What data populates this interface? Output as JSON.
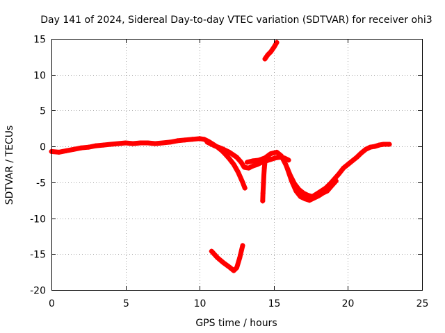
{
  "chart_data": {
    "type": "scatter",
    "title": "Day 141 of 2024, Sidereal Day-to-day VTEC variation (SDTVAR) for receiver ohi3",
    "xlabel": "GPS time / hours",
    "ylabel": "SDTVAR / TECUs",
    "xlim": [
      0,
      25
    ],
    "ylim": [
      -20,
      15
    ],
    "xticks": [
      0,
      5,
      10,
      15,
      20,
      25
    ],
    "yticks": [
      -20,
      -15,
      -10,
      -5,
      0,
      5,
      10,
      15
    ],
    "xtick_labels": [
      "0",
      "5",
      "10",
      "15",
      "20",
      "25"
    ],
    "ytick_labels": [
      "-20",
      "-15",
      "-10",
      "-5",
      "0",
      "5",
      "10",
      "15"
    ],
    "grid": true,
    "marker": "+",
    "color": "#ff0000",
    "series": [
      {
        "name": "main-trace",
        "points": [
          [
            0.0,
            -0.7
          ],
          [
            0.5,
            -0.8
          ],
          [
            1.0,
            -0.6
          ],
          [
            1.5,
            -0.4
          ],
          [
            2.0,
            -0.2
          ],
          [
            2.5,
            -0.1
          ],
          [
            3.0,
            0.1
          ],
          [
            3.5,
            0.2
          ],
          [
            4.0,
            0.3
          ],
          [
            4.5,
            0.4
          ],
          [
            5.0,
            0.5
          ],
          [
            5.5,
            0.4
          ],
          [
            6.0,
            0.5
          ],
          [
            6.5,
            0.5
          ],
          [
            7.0,
            0.4
          ],
          [
            7.5,
            0.5
          ],
          [
            8.0,
            0.6
          ],
          [
            8.5,
            0.8
          ],
          [
            9.0,
            0.9
          ],
          [
            9.5,
            1.0
          ],
          [
            10.0,
            1.1
          ],
          [
            10.3,
            1.0
          ],
          [
            10.6,
            0.7
          ],
          [
            10.9,
            0.3
          ],
          [
            11.2,
            -0.1
          ],
          [
            11.5,
            -0.6
          ],
          [
            11.7,
            -1.0
          ],
          [
            12.0,
            -1.7
          ],
          [
            12.3,
            -2.5
          ],
          [
            12.6,
            -3.6
          ],
          [
            12.9,
            -5.0
          ],
          [
            13.05,
            -5.8
          ]
        ]
      },
      {
        "name": "lower-branch",
        "points": [
          [
            10.5,
            0.6
          ],
          [
            11.0,
            0.1
          ],
          [
            11.5,
            -0.3
          ],
          [
            12.0,
            -0.8
          ],
          [
            12.5,
            -1.5
          ],
          [
            12.8,
            -2.2
          ],
          [
            13.0,
            -2.9
          ],
          [
            13.3,
            -3.0
          ],
          [
            13.6,
            -2.7
          ],
          [
            13.9,
            -2.5
          ],
          [
            14.2,
            -2.2
          ],
          [
            14.5,
            -2.0
          ],
          [
            14.8,
            -1.8
          ],
          [
            15.1,
            -1.6
          ],
          [
            15.4,
            -1.5
          ],
          [
            15.7,
            -1.6
          ],
          [
            16.0,
            -1.9
          ]
        ]
      },
      {
        "name": "dip-trace",
        "points": [
          [
            13.2,
            -2.2
          ],
          [
            13.6,
            -2.0
          ],
          [
            14.0,
            -1.9
          ],
          [
            14.4,
            -1.6
          ],
          [
            14.8,
            -1.0
          ],
          [
            15.2,
            -0.8
          ],
          [
            15.5,
            -1.3
          ],
          [
            15.8,
            -2.5
          ],
          [
            16.1,
            -4.0
          ],
          [
            16.4,
            -5.2
          ],
          [
            16.7,
            -6.0
          ],
          [
            17.0,
            -6.5
          ],
          [
            17.3,
            -6.8
          ],
          [
            17.6,
            -7.0
          ],
          [
            17.9,
            -6.6
          ],
          [
            18.2,
            -6.2
          ],
          [
            18.5,
            -5.8
          ],
          [
            18.8,
            -5.2
          ],
          [
            19.1,
            -4.5
          ],
          [
            19.4,
            -3.8
          ],
          [
            19.7,
            -3.0
          ],
          [
            20.0,
            -2.5
          ],
          [
            20.3,
            -2.0
          ],
          [
            20.6,
            -1.5
          ],
          [
            20.9,
            -0.9
          ],
          [
            21.2,
            -0.4
          ],
          [
            21.5,
            -0.1
          ],
          [
            21.8,
            0.0
          ],
          [
            22.1,
            0.2
          ],
          [
            22.4,
            0.3
          ],
          [
            22.8,
            0.3
          ]
        ]
      },
      {
        "name": "dip-trace-low",
        "points": [
          [
            15.9,
            -3.0
          ],
          [
            16.2,
            -4.8
          ],
          [
            16.5,
            -6.2
          ],
          [
            16.8,
            -7.0
          ],
          [
            17.1,
            -7.3
          ],
          [
            17.4,
            -7.5
          ],
          [
            17.7,
            -7.2
          ],
          [
            18.0,
            -6.9
          ],
          [
            18.3,
            -6.5
          ],
          [
            18.6,
            -6.2
          ],
          [
            18.9,
            -5.5
          ],
          [
            19.2,
            -4.8
          ]
        ]
      },
      {
        "name": "spike-14.3",
        "points": [
          [
            14.25,
            -7.6
          ],
          [
            14.27,
            -6.5
          ],
          [
            14.3,
            -5.2
          ],
          [
            14.33,
            -4.0
          ],
          [
            14.36,
            -3.0
          ],
          [
            14.4,
            -2.2
          ],
          [
            14.45,
            -1.8
          ]
        ]
      },
      {
        "name": "upper-segment",
        "points": [
          [
            14.4,
            12.2
          ],
          [
            14.6,
            12.8
          ],
          [
            14.8,
            13.2
          ],
          [
            15.0,
            13.8
          ],
          [
            15.2,
            14.5
          ]
        ]
      },
      {
        "name": "low-segment",
        "points": [
          [
            10.8,
            -14.6
          ],
          [
            11.2,
            -15.5
          ],
          [
            11.6,
            -16.2
          ],
          [
            12.0,
            -16.8
          ],
          [
            12.3,
            -17.3
          ],
          [
            12.5,
            -16.9
          ],
          [
            12.7,
            -15.5
          ],
          [
            12.9,
            -13.8
          ]
        ]
      }
    ]
  }
}
